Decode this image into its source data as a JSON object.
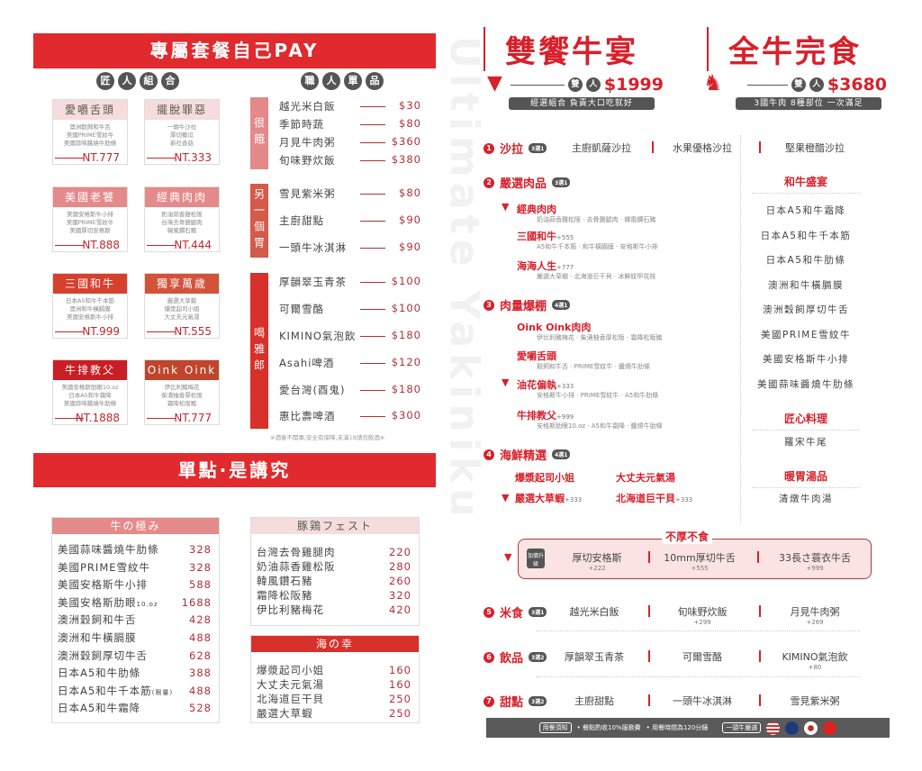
{
  "watermark": "Ultimate Yakiniku",
  "left": {
    "banner": "專屬套餐自己PAY",
    "combo_heading": [
      "匠",
      "人",
      "組",
      "合"
    ],
    "combos": [
      {
        "name": "愛嚼舌頭",
        "items": [
          "澳洲穀飼和牛舌",
          "美國PRIME雪紋牛",
          "美國蒜味醬燒牛肋條"
        ],
        "price": "NT.777",
        "color": "#f6dcdc",
        "text": "#555"
      },
      {
        "name": "擺脫罪惡",
        "items": [
          "一頭牛沙拉",
          "厚切椰瓜",
          "新社香菇"
        ],
        "price": "NT.333",
        "color": "#f6dcdc",
        "text": "#555"
      },
      {
        "name": "美國老饕",
        "items": [
          "美國安格斯牛小排",
          "美國PRIME雪紋牛",
          "美國厚切安格斯"
        ],
        "price": "NT.888",
        "color": "#e58a8a",
        "text": "#fff"
      },
      {
        "name": "經典肉肉",
        "items": [
          "奶油蒜香雞松阪",
          "台灣去骨雞腿肉",
          "韓風鑽石豬"
        ],
        "price": "NT.444",
        "color": "#e58a8a",
        "text": "#fff"
      },
      {
        "name": "三國和牛",
        "items": [
          "日本A5和牛千本筋",
          "澳洲和牛橫膈膜",
          "美國安格斯牛小排"
        ],
        "price": "NT.999",
        "color": "#d8402e",
        "text": "#fff"
      },
      {
        "name": "獨享萬歲",
        "items": [
          "嚴選大草蝦",
          "爆漿起司小姐",
          "大丈夫元氣湯"
        ],
        "price": "NT.555",
        "color": "#d2523a",
        "text": "#fff"
      },
      {
        "name": "牛排教父",
        "items": [
          "美國安格斯肋眼10.oz",
          "日本A5和牛霜降",
          "美國蒜味醬燒牛肋條"
        ],
        "price": "NT.1888",
        "color": "#c81e24",
        "text": "#fff"
      },
      {
        "name": "Oink Oink",
        "items": [
          "伊比利豬梅花",
          "柴漬柚香厚松阪",
          "霜降松阪豬"
        ],
        "price": "NT.777",
        "color": "#c0452c",
        "text": "#fff"
      }
    ],
    "single_heading": [
      "職",
      "人",
      "單",
      "品"
    ],
    "groups": [
      {
        "label": "很餓",
        "color": "#e4898a",
        "items": [
          {
            "name": "越光米白飯",
            "price": "$30"
          },
          {
            "name": "季節時蔬",
            "price": "$80"
          },
          {
            "name": "月見牛肉粥",
            "price": "$360"
          },
          {
            "name": "旬味野炊飯",
            "price": "$380"
          }
        ]
      },
      {
        "label": "另一個胃",
        "color": "#d45a4a",
        "items": [
          {
            "name": "雪見紫米粥",
            "price": "$80"
          },
          {
            "name": "主廚甜點",
            "price": "$90"
          },
          {
            "name": "一頭牛冰淇淋",
            "price": "$90"
          }
        ]
      },
      {
        "label": "喝雅郎",
        "color": "#d8302a",
        "items": [
          {
            "name": "厚韻翠玉青茶",
            "price": "$100"
          },
          {
            "name": "可爾雪酪",
            "price": "$100"
          },
          {
            "name": "KIMINO氣泡飲",
            "price": "$180"
          },
          {
            "name": "Asahi啤酒",
            "price": "$120"
          },
          {
            "name": "愛台灣(酉鬼)",
            "price": "$180"
          },
          {
            "name": "惠比壽啤酒",
            "price": "$300"
          }
        ]
      }
    ],
    "drink_note": "※酒後不開車,安全有保障,未滿18請勿飲酒※",
    "banner2": "單點·是講究",
    "beef": {
      "title": "牛の極み",
      "items": [
        {
          "name": "美國蒜味醬燒牛肋條",
          "price": "328"
        },
        {
          "name": "美國PRIME雪紋牛",
          "price": "328"
        },
        {
          "name": "美國安格斯牛小排",
          "price": "588"
        },
        {
          "name": "美國安格斯肋眼",
          "note": "10.oz",
          "price": "1688"
        },
        {
          "name": "澳洲穀飼和牛舌",
          "price": "428"
        },
        {
          "name": "澳洲和牛橫膈膜",
          "price": "488"
        },
        {
          "name": "澳洲穀飼厚切牛舌",
          "price": "628"
        },
        {
          "name": "日本A5和牛肋條",
          "price": "388"
        },
        {
          "name": "日本A5和牛千本筋",
          "note": "(限量)",
          "price": "488"
        },
        {
          "name": "日本A5和牛霜降",
          "price": "528"
        }
      ]
    },
    "pork": {
      "title": "豚鶏フェスト",
      "items": [
        {
          "name": "台灣去骨雞腿肉",
          "price": "220"
        },
        {
          "name": "奶油蒜香雞松阪",
          "price": "280"
        },
        {
          "name": "韓風鑽石豬",
          "price": "260"
        },
        {
          "name": "霜降松阪豬",
          "price": "320"
        },
        {
          "name": "伊比利豬梅花",
          "price": "420"
        }
      ]
    },
    "sea": {
      "title": "海の幸",
      "items": [
        {
          "name": "爆漿起司小姐",
          "price": "160"
        },
        {
          "name": "大丈夫元氣湯",
          "price": "160"
        },
        {
          "name": "北海道巨干貝",
          "price": "250"
        },
        {
          "name": "嚴選大草蝦",
          "price": "250"
        }
      ]
    }
  },
  "right": {
    "set1": {
      "title": "雙饗牛宴",
      "people": [
        "雙",
        "人"
      ],
      "price": "$1999",
      "tag": "經選組合 負責大口吃就好"
    },
    "set2": {
      "title": "全牛完食",
      "people": [
        "雙",
        "人"
      ],
      "price": "$3680",
      "tag": "3國牛肉 8種部位 一次滿足"
    },
    "s1": {
      "num": "1",
      "title": "沙拉",
      "badge": "3選1",
      "options": [
        "主廚凱薩沙拉",
        "水果優格沙拉",
        "堅果橙醋沙拉"
      ]
    },
    "s2": {
      "num": "2",
      "title": "嚴選肉品",
      "badge": "3選1",
      "dishes": [
        {
          "name": "經典肉肉",
          "extra": "",
          "desc": "奶油蒜香雞松阪 · 去骨雞腿肉 · 韓風鑽石豬"
        },
        {
          "name": "三國和牛",
          "extra": "+555",
          "desc": "A5和牛千本筋 · 和牛橫膈膜 · 安格斯牛小排"
        },
        {
          "name": "海海人生",
          "extra": "+777",
          "desc": "嚴選大草蝦 · 北海道巨干貝 · 冰鮮紋甲花枝"
        }
      ]
    },
    "s3": {
      "num": "3",
      "title": "肉量爆棚",
      "badge": "4選1",
      "dishes": [
        {
          "name": "Oink Oink肉肉",
          "extra": "",
          "desc": "伊比利豬梅花 · 柴漬柚香厚松阪 · 霜降松阪豬"
        },
        {
          "name": "愛嚼舌頭",
          "extra": "",
          "desc": "穀飼和牛舌 · PRIME雪紋牛 · 醬燒牛肋條"
        },
        {
          "name": "油花偏執",
          "extra": "+333",
          "desc": "安格斯牛小排 · PRIME雪紋牛 · A5和牛肋條"
        },
        {
          "name": "牛排教父",
          "extra": "+999",
          "desc": "安格斯肋眼10.oz · A5和牛霜降 · 醬燒牛肋條"
        }
      ]
    },
    "s4": {
      "num": "4",
      "title": "海鮮精選",
      "badge": "4選1",
      "dishes": [
        {
          "name": "爆漿起司小姐",
          "extra": ""
        },
        {
          "name": "大丈夫元氣湯",
          "extra": ""
        },
        {
          "name": "嚴選大草蝦",
          "extra": "+333"
        },
        {
          "name": "北海道巨干貝",
          "extra": "+333"
        }
      ]
    },
    "wagyu": {
      "title": "和牛盛宴",
      "items": [
        "日本A5和牛霜降",
        "日本A5和牛千本筋",
        "日本A5和牛肋條",
        "澳洲和牛橫膈膜",
        "澳洲穀飼厚切牛舌",
        "美國PRIME雪紋牛",
        "美國安格斯牛小排",
        "美國蒜味醬燒牛肋條"
      ]
    },
    "craft": {
      "title": "匠心料理",
      "items": [
        "羅宋牛尾"
      ]
    },
    "soup": {
      "title": "暖胃湯品",
      "items": [
        "清燉牛肉湯"
      ]
    },
    "upgrade": {
      "title": "不厚不食",
      "badge": "加價升級",
      "options": [
        {
          "name": "厚切安格斯",
          "extra": "+222"
        },
        {
          "name": "10mm厚切牛舌",
          "extra": "+555"
        },
        {
          "name": "33長さ蓑衣牛舌",
          "extra": "+999"
        }
      ]
    },
    "s5": {
      "num": "5",
      "title": "米食",
      "badge": "3選1",
      "options": [
        {
          "name": "越光米白飯",
          "extra": ""
        },
        {
          "name": "旬味野炊飯",
          "extra": "+299"
        },
        {
          "name": "月見牛肉粥",
          "extra": "+269"
        }
      ]
    },
    "s6": {
      "num": "6",
      "title": "飲品",
      "badge": "3選2",
      "options": [
        {
          "name": "厚韻翠玉青茶",
          "extra": ""
        },
        {
          "name": "可爾雪酪",
          "extra": ""
        },
        {
          "name": "KIMINO氣泡飲",
          "extra": "+80"
        }
      ]
    },
    "s7": {
      "num": "7",
      "title": "甜點",
      "badge": "3選2",
      "options": [
        {
          "name": "主廚甜點",
          "extra": ""
        },
        {
          "name": "一頭牛冰淇淋",
          "extra": ""
        },
        {
          "name": "雪見紫米粥",
          "extra": ""
        }
      ]
    },
    "footer": {
      "notice": "用餐須知",
      "rule1": "• 餐點酌收10%服務費",
      "rule2": "• 用餐時間為120分鐘",
      "origin": "一頭牛嚴選",
      "flags": [
        "us-flag",
        "au-flag",
        "jp-flag",
        "tw-flag"
      ]
    }
  },
  "colors": {
    "brand": "#d8202a",
    "banner": "#e02a2e",
    "footer": "#5a5a5a"
  }
}
